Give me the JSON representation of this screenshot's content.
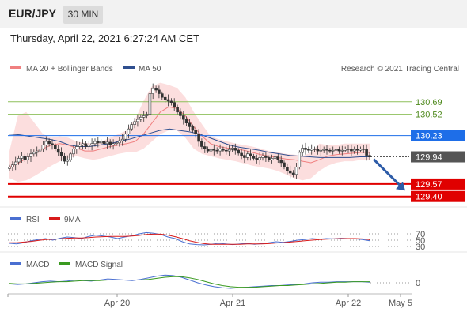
{
  "header": {
    "symbol": "EUR/JPY",
    "timeframe": "30 MIN",
    "datetime": "Thursday, April 22, 2021 6:27:24 AM CET"
  },
  "legend": {
    "ma20": "MA 20 + Bollinger Bands",
    "ma50": "MA 50",
    "copyright": "Research © 2021 Trading Central"
  },
  "rsi_legend": {
    "rsi": "RSI",
    "ma": "9MA"
  },
  "macd_legend": {
    "macd": "MACD",
    "signal": "MACD Signal"
  },
  "colors": {
    "up": "#2a7a2a",
    "down": "#c62828",
    "ma20": "#f08080",
    "ma50": "#2f4f8f",
    "resistance": "#8dbf5a",
    "pivot": "#1e6ee8",
    "support": "#e00000",
    "current": "#222222",
    "arrow": "#2e5ca8"
  },
  "chart_data": [
    {
      "type": "candlestick",
      "title": "",
      "price_axis": {
        "min": 129.3,
        "max": 131.0
      },
      "x_ticks": [
        "Apr 20",
        "Apr 21",
        "Apr 22",
        "May 5"
      ],
      "levels": [
        {
          "value": 130.69,
          "label": "130.69",
          "kind": "resistance"
        },
        {
          "value": 130.52,
          "label": "130.52",
          "kind": "resistance"
        },
        {
          "value": 130.23,
          "label": "130.23",
          "kind": "pivot"
        },
        {
          "value": 129.94,
          "label": "129.94",
          "kind": "current"
        },
        {
          "value": 129.57,
          "label": "129.57",
          "kind": "support"
        },
        {
          "value": 129.4,
          "label": "129.40",
          "kind": "support"
        }
      ],
      "close_series": [
        129.8,
        129.83,
        129.87,
        129.92,
        129.95,
        129.9,
        129.94,
        129.98,
        130.0,
        130.02,
        130.05,
        130.1,
        130.15,
        130.12,
        130.1,
        130.05,
        130.0,
        129.95,
        129.88,
        129.9,
        129.98,
        130.05,
        130.08,
        130.1,
        130.12,
        130.08,
        130.1,
        130.12,
        130.15,
        130.13,
        130.15,
        130.12,
        130.14,
        130.1,
        130.12,
        130.13,
        130.16,
        130.18,
        130.25,
        130.32,
        130.38,
        130.42,
        130.45,
        130.48,
        130.5,
        130.52,
        130.8,
        130.87,
        130.85,
        130.8,
        130.75,
        130.72,
        130.7,
        130.68,
        130.62,
        130.55,
        130.5,
        130.45,
        130.4,
        130.35,
        130.3,
        130.25,
        130.15,
        130.08,
        130.05,
        130.02,
        130.04,
        130.03,
        130.02,
        130.05,
        130.03,
        130.02,
        130.04,
        130.06,
        130.03,
        129.99,
        129.96,
        129.93,
        129.98,
        129.95,
        129.92,
        129.9,
        129.93,
        129.95,
        129.93,
        129.9,
        129.92,
        129.94,
        129.9,
        129.86,
        129.8,
        129.75,
        129.72,
        129.7,
        129.8,
        130.0,
        130.06,
        130.04,
        130.03,
        130.05,
        130.04,
        130.02,
        130.03,
        130.04,
        130.03,
        130.02,
        130.03,
        130.04,
        130.02,
        130.03,
        130.05,
        130.04,
        130.02,
        130.04,
        130.03,
        130.05,
        130.04,
        129.96,
        129.94
      ],
      "bands": {
        "ma20": [
          129.8,
          129.85,
          129.92,
          130.0,
          130.05,
          130.1,
          130.12,
          130.1,
          130.06,
          130.02,
          130.02,
          130.05,
          130.08,
          130.1,
          130.12,
          130.15,
          130.25,
          130.4,
          130.55,
          130.62,
          130.6,
          130.5,
          130.35,
          130.22,
          130.12,
          130.08,
          130.06,
          130.05,
          130.03,
          130.0,
          129.97,
          129.95,
          129.93,
          129.91,
          129.9,
          129.88,
          129.86,
          129.9,
          129.95,
          129.97,
          129.98,
          129.99,
          130.0,
          130.0
        ],
        "upper": [
          130.02,
          130.5,
          130.55,
          130.4,
          130.25,
          130.2,
          130.22,
          130.2,
          130.15,
          130.13,
          130.12,
          130.15,
          130.2,
          130.25,
          130.3,
          130.45,
          130.7,
          130.9,
          130.95,
          130.92,
          130.88,
          130.75,
          130.55,
          130.38,
          130.22,
          130.18,
          130.15,
          130.12,
          130.1,
          130.08,
          130.05,
          130.02,
          130.0,
          129.98,
          129.97,
          129.95,
          130.0,
          130.12,
          130.1,
          130.1,
          130.12,
          130.12,
          130.12,
          130.12
        ],
        "lower": [
          129.65,
          129.6,
          129.62,
          129.68,
          129.75,
          129.82,
          129.88,
          129.92,
          129.95,
          129.92,
          129.9,
          129.92,
          129.95,
          129.98,
          130.0,
          130.0,
          130.05,
          130.15,
          130.25,
          130.3,
          130.3,
          130.2,
          130.05,
          129.98,
          129.95,
          129.92,
          129.9,
          129.88,
          129.85,
          129.82,
          129.8,
          129.78,
          129.75,
          129.7,
          129.65,
          129.62,
          129.65,
          129.75,
          129.82,
          129.86,
          129.88,
          129.88,
          129.9,
          129.9
        ]
      },
      "ma50": [
        130.25,
        130.24,
        130.22,
        130.2,
        130.18,
        130.15,
        130.1,
        130.08,
        130.08,
        130.1,
        130.12,
        130.15,
        130.18,
        130.22,
        130.26,
        130.3,
        130.32,
        130.3,
        130.28,
        130.25,
        130.2,
        130.15,
        130.1,
        130.07,
        130.05,
        130.03,
        130.0,
        129.98,
        129.96,
        129.95,
        129.94,
        129.93,
        129.93,
        129.93,
        129.93,
        129.94,
        129.94
      ],
      "forecast_arrow": {
        "from": 129.94,
        "to": 129.48
      }
    },
    {
      "type": "line",
      "title": "",
      "yticks": [
        "70",
        "50",
        "30"
      ],
      "ylim": [
        20,
        80
      ],
      "series": [
        {
          "name": "RSI",
          "values": [
            40,
            38,
            42,
            48,
            52,
            55,
            50,
            56,
            60,
            58,
            55,
            62,
            66,
            63,
            60,
            55,
            60,
            64,
            70,
            74,
            72,
            68,
            60,
            55,
            45,
            38,
            36,
            35,
            37,
            40,
            38,
            36,
            38,
            40,
            37,
            39,
            42,
            45,
            43,
            46,
            50,
            52,
            55,
            53,
            55,
            54,
            56,
            55,
            54,
            52,
            48
          ]
        },
        {
          "name": "9MA",
          "values": [
            42,
            42,
            44,
            46,
            49,
            52,
            53,
            54,
            56,
            57,
            57,
            58,
            60,
            61,
            62,
            62,
            62,
            63,
            65,
            68,
            69,
            69,
            66,
            61,
            55,
            48,
            43,
            39,
            37,
            37,
            37,
            37,
            37,
            38,
            38,
            38,
            39,
            41,
            42,
            44,
            46,
            48,
            50,
            52,
            53,
            54,
            55,
            55,
            55,
            54,
            52
          ]
        }
      ]
    },
    {
      "type": "line",
      "title": "",
      "yticks": [
        "0"
      ],
      "ylim": [
        -0.2,
        0.2
      ],
      "series": [
        {
          "name": "MACD",
          "values": [
            -0.02,
            -0.03,
            -0.02,
            0.0,
            0.02,
            0.03,
            0.02,
            0.03,
            0.05,
            0.04,
            0.03,
            0.05,
            0.07,
            0.06,
            0.05,
            0.04,
            0.06,
            0.09,
            0.12,
            0.14,
            0.13,
            0.1,
            0.05,
            0.0,
            -0.04,
            -0.07,
            -0.09,
            -0.1,
            -0.09,
            -0.08,
            -0.07,
            -0.06,
            -0.05,
            -0.05,
            -0.04,
            -0.03,
            -0.02,
            0.0,
            0.01,
            0.01,
            0.02,
            0.02,
            0.02,
            0.02,
            0.01
          ]
        },
        {
          "name": "MACD Signal",
          "values": [
            -0.01,
            -0.02,
            -0.02,
            -0.01,
            0.0,
            0.01,
            0.02,
            0.02,
            0.03,
            0.04,
            0.04,
            0.04,
            0.05,
            0.05,
            0.05,
            0.05,
            0.05,
            0.06,
            0.08,
            0.1,
            0.11,
            0.11,
            0.09,
            0.06,
            0.02,
            -0.02,
            -0.05,
            -0.07,
            -0.08,
            -0.08,
            -0.08,
            -0.07,
            -0.06,
            -0.05,
            -0.05,
            -0.04,
            -0.03,
            -0.02,
            -0.01,
            0.0,
            0.01,
            0.01,
            0.02,
            0.02,
            0.02
          ]
        }
      ]
    }
  ]
}
